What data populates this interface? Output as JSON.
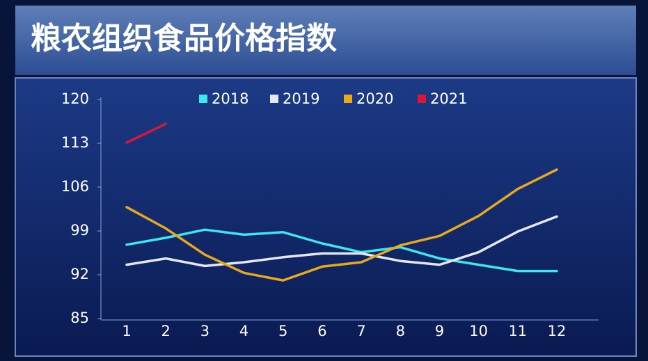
{
  "chart_data": {
    "type": "line",
    "title": "粮农组织食品价格指数",
    "categories": [
      "1",
      "2",
      "3",
      "4",
      "5",
      "6",
      "7",
      "8",
      "9",
      "10",
      "11",
      "12"
    ],
    "series": [
      {
        "name": "2018",
        "color": "#3fe6ec",
        "values": [
          96.8,
          97.9,
          99.2,
          98.4,
          98.8,
          97.0,
          95.6,
          96.4,
          94.6,
          93.6,
          92.6,
          92.6
        ]
      },
      {
        "name": "2019",
        "color": "#e6e8f0",
        "values": [
          93.6,
          94.6,
          93.4,
          94.0,
          94.8,
          95.4,
          95.4,
          94.2,
          93.6,
          95.6,
          98.9,
          101.3
        ]
      },
      {
        "name": "2020",
        "color": "#e6aa1e",
        "values": [
          102.8,
          99.4,
          95.2,
          92.3,
          91.1,
          93.3,
          94.0,
          96.7,
          98.2,
          101.4,
          105.7,
          108.8
        ]
      },
      {
        "name": "2021",
        "color": "#d8183a",
        "values": [
          113.1,
          116.1,
          null,
          null,
          null,
          null,
          null,
          null,
          null,
          null,
          null,
          null
        ]
      }
    ],
    "ylim": [
      85,
      120
    ],
    "yticks": [
      85,
      92,
      99,
      106,
      113,
      120
    ]
  }
}
